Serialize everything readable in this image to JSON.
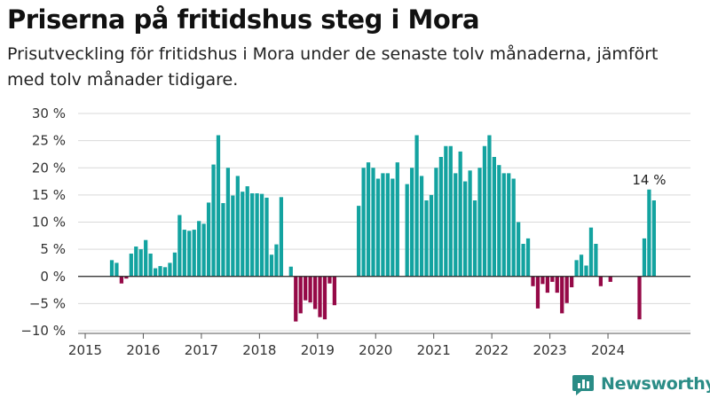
{
  "header": {
    "title": "Priserna på fritidshus steg i Mora",
    "subtitle": "Prisutveckling för fritidshus i Mora under de senaste tolv månaderna, jämfört med tolv månader tidigare."
  },
  "brand": {
    "name": "Newsworthy",
    "icon": "newsworthy-logo-icon"
  },
  "colors": {
    "positive": "#13a3a0",
    "negative": "#950947",
    "grid": "#d9d9d9",
    "zero_line": "#222222"
  },
  "chart_data": {
    "type": "bar",
    "x_start": "2015-01",
    "x_end": "2024-12",
    "ylim": [
      -10,
      30
    ],
    "y_ticks": [
      -10,
      -5,
      0,
      5,
      10,
      15,
      20,
      25,
      30
    ],
    "y_tick_labels": [
      "−10 %",
      "−5 %",
      "0 %",
      "5 %",
      "10 %",
      "15 %",
      "20 %",
      "25 %",
      "30 %"
    ],
    "x_ticks": [
      "2015",
      "2016",
      "2017",
      "2018",
      "2019",
      "2020",
      "2021",
      "2022",
      "2023",
      "2024"
    ],
    "grid": true,
    "annotation": {
      "x": "2024-10",
      "label": "14 %"
    },
    "data": [
      {
        "x": "2015-06",
        "y": 3
      },
      {
        "x": "2015-07",
        "y": 2.5
      },
      {
        "x": "2015-08",
        "y": -1.3
      },
      {
        "x": "2015-09",
        "y": -0.4
      },
      {
        "x": "2015-10",
        "y": 4.2
      },
      {
        "x": "2015-11",
        "y": 5.5
      },
      {
        "x": "2015-12",
        "y": 5
      },
      {
        "x": "2016-01",
        "y": 6.7
      },
      {
        "x": "2016-02",
        "y": 4.2
      },
      {
        "x": "2016-03",
        "y": 1.5
      },
      {
        "x": "2016-04",
        "y": 1.9
      },
      {
        "x": "2016-05",
        "y": 1.7
      },
      {
        "x": "2016-06",
        "y": 2.5
      },
      {
        "x": "2016-07",
        "y": 4.4
      },
      {
        "x": "2016-08",
        "y": 11.3
      },
      {
        "x": "2016-09",
        "y": 8.6
      },
      {
        "x": "2016-10",
        "y": 8.4
      },
      {
        "x": "2016-11",
        "y": 8.6
      },
      {
        "x": "2016-12",
        "y": 10.2
      },
      {
        "x": "2017-01",
        "y": 9.7
      },
      {
        "x": "2017-02",
        "y": 13.6
      },
      {
        "x": "2017-03",
        "y": 20.6
      },
      {
        "x": "2017-04",
        "y": 26
      },
      {
        "x": "2017-05",
        "y": 13.5
      },
      {
        "x": "2017-06",
        "y": 20
      },
      {
        "x": "2017-07",
        "y": 14.9
      },
      {
        "x": "2017-08",
        "y": 18.5
      },
      {
        "x": "2017-09",
        "y": 15.6
      },
      {
        "x": "2017-10",
        "y": 16.6
      },
      {
        "x": "2017-11",
        "y": 15.3
      },
      {
        "x": "2017-12",
        "y": 15.3
      },
      {
        "x": "2018-01",
        "y": 15.2
      },
      {
        "x": "2018-02",
        "y": 14.5
      },
      {
        "x": "2018-03",
        "y": 4
      },
      {
        "x": "2018-04",
        "y": 5.9
      },
      {
        "x": "2018-05",
        "y": 14.6
      },
      {
        "x": "2018-06",
        "y": 0
      },
      {
        "x": "2018-07",
        "y": 1.8
      },
      {
        "x": "2018-08",
        "y": -8.3
      },
      {
        "x": "2018-09",
        "y": -6.8
      },
      {
        "x": "2018-10",
        "y": -4.4
      },
      {
        "x": "2018-11",
        "y": -4.8
      },
      {
        "x": "2018-12",
        "y": -6
      },
      {
        "x": "2019-01",
        "y": -7.5
      },
      {
        "x": "2019-02",
        "y": -7.9
      },
      {
        "x": "2019-03",
        "y": -1.3
      },
      {
        "x": "2019-04",
        "y": -5.3
      },
      {
        "x": "2019-09",
        "y": 13
      },
      {
        "x": "2019-10",
        "y": 20
      },
      {
        "x": "2019-11",
        "y": 21
      },
      {
        "x": "2019-12",
        "y": 20
      },
      {
        "x": "2020-01",
        "y": 18
      },
      {
        "x": "2020-02",
        "y": 19
      },
      {
        "x": "2020-03",
        "y": 19
      },
      {
        "x": "2020-04",
        "y": 18
      },
      {
        "x": "2020-05",
        "y": 21
      },
      {
        "x": "2020-06",
        "y": 0
      },
      {
        "x": "2020-07",
        "y": 17
      },
      {
        "x": "2020-08",
        "y": 20
      },
      {
        "x": "2020-09",
        "y": 26
      },
      {
        "x": "2020-10",
        "y": 18.5
      },
      {
        "x": "2020-11",
        "y": 14
      },
      {
        "x": "2020-12",
        "y": 15
      },
      {
        "x": "2021-01",
        "y": 20
      },
      {
        "x": "2021-02",
        "y": 22
      },
      {
        "x": "2021-03",
        "y": 24
      },
      {
        "x": "2021-04",
        "y": 24
      },
      {
        "x": "2021-05",
        "y": 19
      },
      {
        "x": "2021-06",
        "y": 23
      },
      {
        "x": "2021-07",
        "y": 17.5
      },
      {
        "x": "2021-08",
        "y": 19.5
      },
      {
        "x": "2021-09",
        "y": 14
      },
      {
        "x": "2021-10",
        "y": 20
      },
      {
        "x": "2021-11",
        "y": 24
      },
      {
        "x": "2021-12",
        "y": 26
      },
      {
        "x": "2022-01",
        "y": 22
      },
      {
        "x": "2022-02",
        "y": 20.5
      },
      {
        "x": "2022-03",
        "y": 19
      },
      {
        "x": "2022-04",
        "y": 19
      },
      {
        "x": "2022-05",
        "y": 18
      },
      {
        "x": "2022-06",
        "y": 10
      },
      {
        "x": "2022-07",
        "y": 6
      },
      {
        "x": "2022-08",
        "y": 7
      },
      {
        "x": "2022-09",
        "y": -1.8
      },
      {
        "x": "2022-10",
        "y": -5.9
      },
      {
        "x": "2022-11",
        "y": -1.4
      },
      {
        "x": "2022-12",
        "y": -3
      },
      {
        "x": "2023-01",
        "y": -1
      },
      {
        "x": "2023-02",
        "y": -3
      },
      {
        "x": "2023-03",
        "y": -6.8
      },
      {
        "x": "2023-04",
        "y": -4.9
      },
      {
        "x": "2023-05",
        "y": -2
      },
      {
        "x": "2023-06",
        "y": 3
      },
      {
        "x": "2023-07",
        "y": 4
      },
      {
        "x": "2023-08",
        "y": 2
      },
      {
        "x": "2023-09",
        "y": 9
      },
      {
        "x": "2023-10",
        "y": 6
      },
      {
        "x": "2023-11",
        "y": -1.8
      },
      {
        "x": "2023-12",
        "y": 0
      },
      {
        "x": "2024-01",
        "y": -1
      },
      {
        "x": "2024-07",
        "y": -7.9
      },
      {
        "x": "2024-08",
        "y": 7
      },
      {
        "x": "2024-09",
        "y": 16
      },
      {
        "x": "2024-10",
        "y": 14
      }
    ]
  }
}
